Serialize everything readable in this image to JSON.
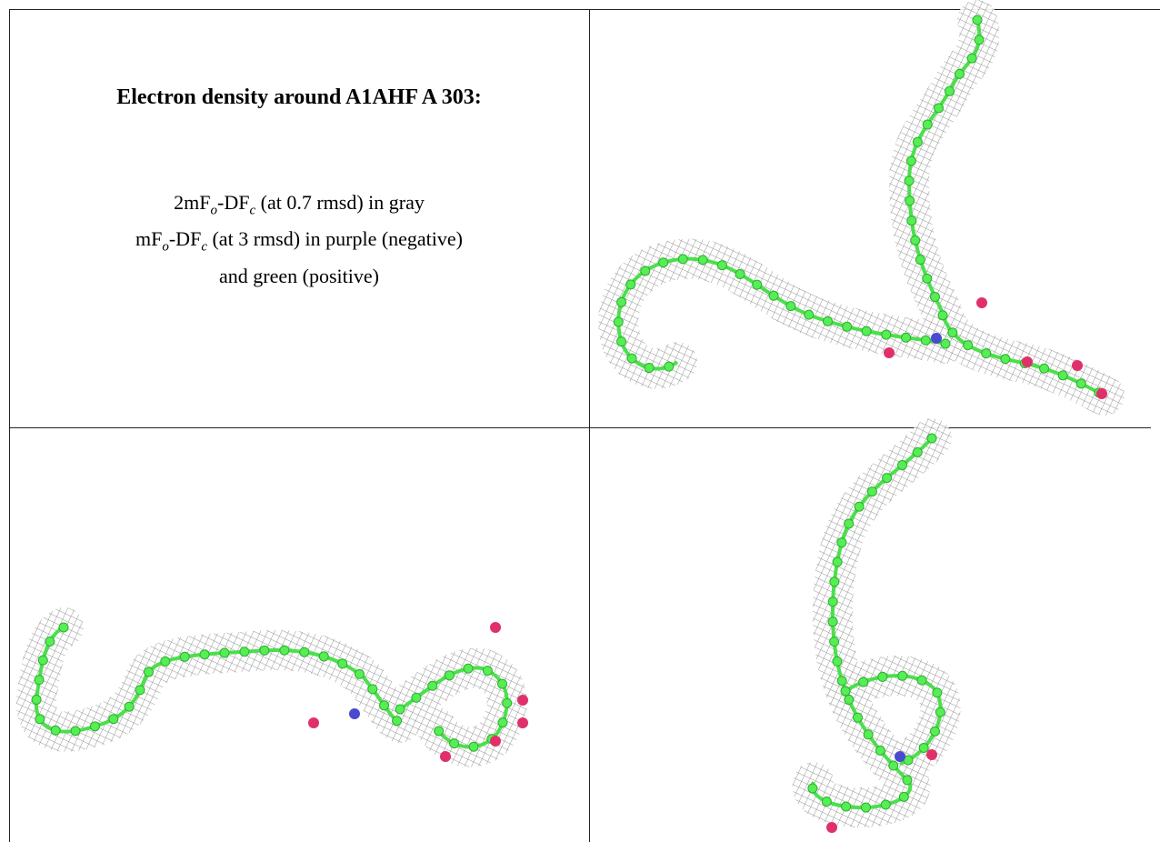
{
  "caption": {
    "title": "Electron density around A1AHF A 303:",
    "lines": [
      [
        "2mF",
        "o",
        "-DF",
        "c",
        " (at 0.7 rmsd) in gray"
      ],
      [
        "mF",
        "o",
        "-DF",
        "c",
        " (at 3 rmsd) in purple (negative)"
      ],
      [
        "and green (positive)"
      ]
    ]
  }
}
